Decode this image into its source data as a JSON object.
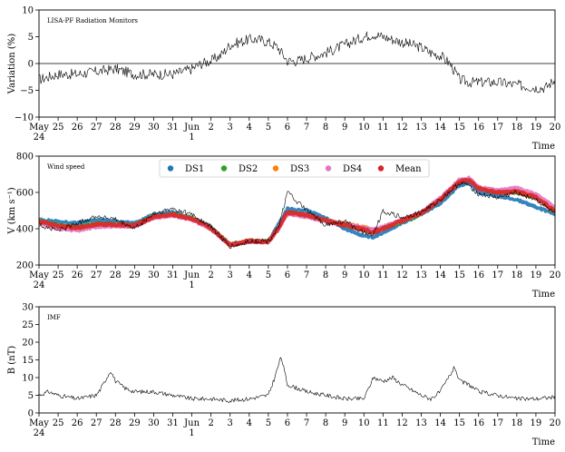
{
  "chart_data": [
    {
      "type": "line",
      "id": "radiation",
      "panel_label": "LISA-PF Radiation Monitors",
      "xlabel": "Time",
      "ylabel": "Variation (%)",
      "xlim": [
        "2017-05-24",
        "2017-06-20"
      ],
      "ylim": [
        -10,
        10
      ],
      "yticks": [
        -10,
        -5,
        0,
        5,
        10
      ],
      "reference_line": 0,
      "series": [
        {
          "color": "#000000",
          "x": [
            "2017-05-24",
            "2017-05-25",
            "2017-05-26",
            "2017-05-27",
            "2017-05-28",
            "2017-05-29",
            "2017-05-30",
            "2017-05-31",
            "2017-06-01",
            "2017-06-01T12:00",
            "2017-06-02",
            "2017-06-02T12:00",
            "2017-06-03",
            "2017-06-03T12:00",
            "2017-06-04",
            "2017-06-04T12:00",
            "2017-06-05",
            "2017-06-05T12:00",
            "2017-06-06",
            "2017-06-06T12:00",
            "2017-06-07",
            "2017-06-08",
            "2017-06-09",
            "2017-06-10",
            "2017-06-10T12:00",
            "2017-06-11",
            "2017-06-12",
            "2017-06-13",
            "2017-06-13T12:00",
            "2017-06-14",
            "2017-06-14T12:00",
            "2017-06-15",
            "2017-06-15T12:00",
            "2017-06-16",
            "2017-06-17",
            "2017-06-18",
            "2017-06-19",
            "2017-06-19T12:00",
            "2017-06-20"
          ],
          "values": [
            -3,
            -2,
            -2,
            -1.5,
            -1,
            -2,
            -2,
            -2,
            -1,
            0,
            0.5,
            1.5,
            3.5,
            4,
            4.5,
            4.5,
            4,
            3,
            0.5,
            0.5,
            1,
            2,
            3.5,
            5,
            5.5,
            5,
            4,
            3,
            2,
            1.5,
            0,
            -3,
            -3.5,
            -3.5,
            -3.5,
            -4,
            -4.5,
            -4.5,
            -3
          ]
        }
      ]
    },
    {
      "type": "line",
      "id": "wind",
      "panel_label": "Wind speed",
      "xlabel": "Time",
      "ylabel": "V (km s⁻¹)",
      "xlim": [
        "2017-05-24",
        "2017-06-20"
      ],
      "ylim": [
        200,
        800
      ],
      "yticks": [
        200,
        400,
        600,
        800
      ],
      "legend": {
        "placement": "top-center",
        "entries": [
          "DS1",
          "DS2",
          "DS3",
          "DS4",
          "Mean"
        ]
      },
      "x": [
        "2017-05-24",
        "2017-05-25",
        "2017-05-26",
        "2017-05-27",
        "2017-05-28",
        "2017-05-29",
        "2017-05-30",
        "2017-05-31",
        "2017-06-01",
        "2017-06-02",
        "2017-06-03",
        "2017-06-03T12:00",
        "2017-06-04",
        "2017-06-05",
        "2017-06-05T12:00",
        "2017-06-06",
        "2017-06-07",
        "2017-06-08",
        "2017-06-09",
        "2017-06-10",
        "2017-06-10T12:00",
        "2017-06-11",
        "2017-06-12",
        "2017-06-13",
        "2017-06-14",
        "2017-06-15",
        "2017-06-15T12:00",
        "2017-06-16",
        "2017-06-17",
        "2017-06-18",
        "2017-06-19",
        "2017-06-20"
      ],
      "series": [
        {
          "name": "DS1",
          "color": "#1f77b4",
          "values": [
            450,
            440,
            430,
            450,
            440,
            430,
            480,
            490,
            460,
            410,
            310,
            320,
            330,
            330,
            420,
            510,
            500,
            460,
            400,
            360,
            350,
            380,
            430,
            480,
            540,
            640,
            650,
            600,
            580,
            560,
            520,
            480
          ]
        },
        {
          "name": "DS2",
          "color": "#2ca02c",
          "values": [
            445,
            420,
            410,
            430,
            425,
            420,
            470,
            480,
            460,
            405,
            315,
            325,
            335,
            330,
            400,
            490,
            470,
            440,
            420,
            400,
            380,
            400,
            440,
            480,
            560,
            660,
            670,
            620,
            600,
            600,
            570,
            490
          ]
        },
        {
          "name": "DS3",
          "color": "#ff7f0e",
          "values": [
            440,
            410,
            400,
            420,
            420,
            415,
            465,
            475,
            455,
            400,
            312,
            322,
            332,
            328,
            395,
            485,
            470,
            445,
            430,
            410,
            390,
            405,
            445,
            485,
            565,
            665,
            670,
            625,
            605,
            610,
            580,
            500
          ]
        },
        {
          "name": "DS4",
          "color": "#e377c2",
          "values": [
            430,
            400,
            390,
            410,
            415,
            410,
            460,
            470,
            450,
            398,
            310,
            320,
            330,
            326,
            390,
            480,
            465,
            440,
            425,
            405,
            395,
            410,
            450,
            490,
            570,
            670,
            680,
            630,
            610,
            625,
            590,
            520
          ]
        },
        {
          "name": "Mean",
          "color": "#d62728",
          "values": [
            440,
            415,
            405,
            425,
            422,
            418,
            466,
            478,
            455,
            402,
            312,
            322,
            332,
            328,
            400,
            490,
            475,
            445,
            420,
            395,
            380,
            400,
            445,
            485,
            560,
            660,
            668,
            620,
            600,
            605,
            575,
            495
          ]
        },
        {
          "color": "#000000",
          "values": [
            420,
            390,
            430,
            470,
            450,
            400,
            480,
            510,
            480,
            410,
            300,
            310,
            330,
            330,
            400,
            600,
            500,
            420,
            440,
            380,
            370,
            500,
            460,
            490,
            560,
            650,
            640,
            590,
            570,
            600,
            560,
            480
          ]
        }
      ]
    },
    {
      "type": "line",
      "id": "imf",
      "panel_label": "IMF",
      "xlabel": "Time",
      "ylabel": "B (nT)",
      "xlim": [
        "2017-05-24",
        "2017-06-20"
      ],
      "ylim": [
        0,
        30
      ],
      "yticks": [
        0,
        5,
        10,
        15,
        20,
        25,
        30
      ],
      "series": [
        {
          "color": "#000000",
          "x": [
            "2017-05-24",
            "2017-05-24T12:00",
            "2017-05-25",
            "2017-05-26",
            "2017-05-27",
            "2017-05-27T06:00",
            "2017-05-27T18:00",
            "2017-05-28",
            "2017-05-28T12:00",
            "2017-05-29",
            "2017-05-30",
            "2017-05-31",
            "2017-06-01",
            "2017-06-02",
            "2017-06-03",
            "2017-06-04",
            "2017-06-05",
            "2017-06-05T08:00",
            "2017-06-05T16:00",
            "2017-06-06",
            "2017-06-06T12:00",
            "2017-06-07",
            "2017-06-08",
            "2017-06-09",
            "2017-06-10",
            "2017-06-10T12:00",
            "2017-06-11",
            "2017-06-11T12:00",
            "2017-06-12",
            "2017-06-13",
            "2017-06-13T12:00",
            "2017-06-14",
            "2017-06-14T18:00",
            "2017-06-15",
            "2017-06-15T12:00",
            "2017-06-16",
            "2017-06-17",
            "2017-06-18",
            "2017-06-19",
            "2017-06-20"
          ],
          "values": [
            5,
            6,
            5,
            4,
            5,
            7,
            12,
            9,
            7,
            6,
            6,
            5,
            4,
            4,
            3.5,
            4,
            5,
            10,
            16,
            8,
            7,
            6,
            5,
            4,
            4,
            10,
            9,
            10,
            8,
            5,
            4,
            6,
            13,
            9,
            8,
            6,
            5,
            4,
            4,
            4.5
          ]
        }
      ]
    }
  ],
  "xaxis": {
    "tick_labels": [
      "May",
      "25",
      "26",
      "27",
      "28",
      "29",
      "30",
      "31",
      "Jun",
      "2",
      "3",
      "4",
      "5",
      "6",
      "7",
      "8",
      "9",
      "10",
      "11",
      "12",
      "13",
      "14",
      "15",
      "16",
      "17",
      "18",
      "19",
      "20"
    ],
    "sub_labels": [
      {
        "date": "2017-05-24",
        "label": "24"
      },
      {
        "date": "2017-06-01",
        "label": "1"
      }
    ]
  }
}
